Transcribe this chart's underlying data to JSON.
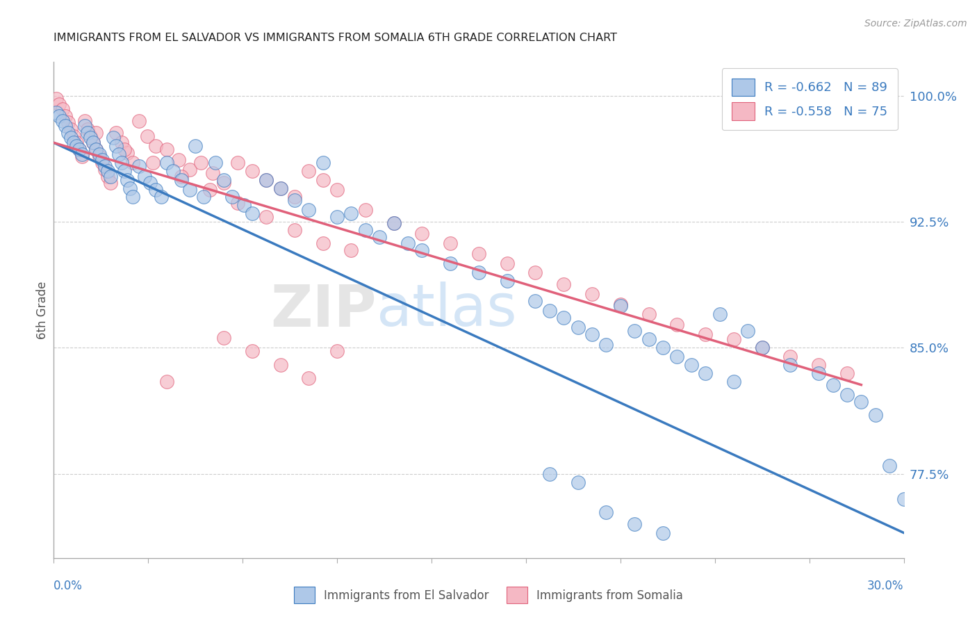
{
  "title": "IMMIGRANTS FROM EL SALVADOR VS IMMIGRANTS FROM SOMALIA 6TH GRADE CORRELATION CHART",
  "source": "Source: ZipAtlas.com",
  "ylabel": "6th Grade",
  "ytick_labels": [
    "100.0%",
    "92.5%",
    "85.0%",
    "77.5%"
  ],
  "ytick_values": [
    1.0,
    0.925,
    0.85,
    0.775
  ],
  "xlim": [
    0.0,
    0.3
  ],
  "ylim": [
    0.725,
    1.02
  ],
  "blue_color": "#aec8e8",
  "pink_color": "#f5b8c4",
  "blue_line_color": "#3a7abf",
  "pink_line_color": "#e0607a",
  "title_color": "#222222",
  "axis_label_color": "#555555",
  "tick_color": "#3a7abf",
  "watermark_zip": "ZIP",
  "watermark_atlas": "atlas",
  "R_blue": "-0.662",
  "N_blue": "89",
  "R_pink": "-0.558",
  "N_pink": "75",
  "blue_line_x": [
    0.0,
    0.3
  ],
  "blue_line_y": [
    0.972,
    0.74
  ],
  "pink_line_x": [
    0.0,
    0.285
  ],
  "pink_line_y": [
    0.972,
    0.828
  ],
  "blue_scatter_x": [
    0.001,
    0.002,
    0.003,
    0.004,
    0.005,
    0.006,
    0.007,
    0.008,
    0.009,
    0.01,
    0.011,
    0.012,
    0.013,
    0.014,
    0.015,
    0.016,
    0.017,
    0.018,
    0.019,
    0.02,
    0.021,
    0.022,
    0.023,
    0.024,
    0.025,
    0.026,
    0.027,
    0.028,
    0.03,
    0.032,
    0.034,
    0.036,
    0.038,
    0.04,
    0.042,
    0.045,
    0.048,
    0.05,
    0.053,
    0.057,
    0.06,
    0.063,
    0.067,
    0.07,
    0.075,
    0.08,
    0.085,
    0.09,
    0.095,
    0.1,
    0.105,
    0.11,
    0.115,
    0.12,
    0.125,
    0.13,
    0.14,
    0.15,
    0.16,
    0.17,
    0.175,
    0.18,
    0.185,
    0.19,
    0.195,
    0.2,
    0.205,
    0.21,
    0.215,
    0.22,
    0.225,
    0.23,
    0.235,
    0.24,
    0.245,
    0.25,
    0.26,
    0.27,
    0.275,
    0.28,
    0.285,
    0.29,
    0.295,
    0.3,
    0.175,
    0.185,
    0.195,
    0.205,
    0.215
  ],
  "blue_scatter_y": [
    0.99,
    0.988,
    0.985,
    0.982,
    0.978,
    0.975,
    0.972,
    0.97,
    0.968,
    0.965,
    0.982,
    0.978,
    0.975,
    0.972,
    0.968,
    0.965,
    0.962,
    0.958,
    0.955,
    0.952,
    0.975,
    0.97,
    0.965,
    0.96,
    0.955,
    0.95,
    0.945,
    0.94,
    0.958,
    0.952,
    0.948,
    0.944,
    0.94,
    0.96,
    0.955,
    0.95,
    0.944,
    0.97,
    0.94,
    0.96,
    0.95,
    0.94,
    0.935,
    0.93,
    0.95,
    0.945,
    0.938,
    0.932,
    0.96,
    0.928,
    0.93,
    0.92,
    0.916,
    0.924,
    0.912,
    0.908,
    0.9,
    0.895,
    0.89,
    0.878,
    0.872,
    0.868,
    0.862,
    0.858,
    0.852,
    0.875,
    0.86,
    0.855,
    0.85,
    0.845,
    0.84,
    0.835,
    0.87,
    0.83,
    0.86,
    0.85,
    0.84,
    0.835,
    0.828,
    0.822,
    0.818,
    0.81,
    0.78,
    0.76,
    0.775,
    0.77,
    0.752,
    0.745,
    0.74
  ],
  "pink_scatter_x": [
    0.001,
    0.002,
    0.003,
    0.004,
    0.005,
    0.006,
    0.007,
    0.008,
    0.009,
    0.01,
    0.011,
    0.012,
    0.013,
    0.014,
    0.015,
    0.016,
    0.017,
    0.018,
    0.019,
    0.02,
    0.022,
    0.024,
    0.026,
    0.028,
    0.03,
    0.033,
    0.036,
    0.04,
    0.044,
    0.048,
    0.052,
    0.056,
    0.06,
    0.065,
    0.07,
    0.075,
    0.08,
    0.085,
    0.09,
    0.095,
    0.1,
    0.11,
    0.12,
    0.13,
    0.14,
    0.15,
    0.16,
    0.17,
    0.18,
    0.19,
    0.2,
    0.21,
    0.22,
    0.23,
    0.24,
    0.25,
    0.26,
    0.27,
    0.28,
    0.015,
    0.025,
    0.035,
    0.045,
    0.055,
    0.065,
    0.075,
    0.085,
    0.095,
    0.105,
    0.06,
    0.07,
    0.08,
    0.09,
    0.1,
    0.04
  ],
  "pink_scatter_y": [
    0.998,
    0.995,
    0.992,
    0.988,
    0.984,
    0.98,
    0.976,
    0.972,
    0.968,
    0.964,
    0.985,
    0.98,
    0.976,
    0.972,
    0.968,
    0.964,
    0.96,
    0.956,
    0.952,
    0.948,
    0.978,
    0.972,
    0.966,
    0.96,
    0.985,
    0.976,
    0.97,
    0.968,
    0.962,
    0.956,
    0.96,
    0.954,
    0.948,
    0.96,
    0.955,
    0.95,
    0.945,
    0.94,
    0.955,
    0.95,
    0.944,
    0.932,
    0.924,
    0.918,
    0.912,
    0.906,
    0.9,
    0.895,
    0.888,
    0.882,
    0.876,
    0.87,
    0.864,
    0.858,
    0.855,
    0.85,
    0.845,
    0.84,
    0.835,
    0.978,
    0.968,
    0.96,
    0.952,
    0.944,
    0.936,
    0.928,
    0.92,
    0.912,
    0.908,
    0.856,
    0.848,
    0.84,
    0.832,
    0.848,
    0.83
  ]
}
